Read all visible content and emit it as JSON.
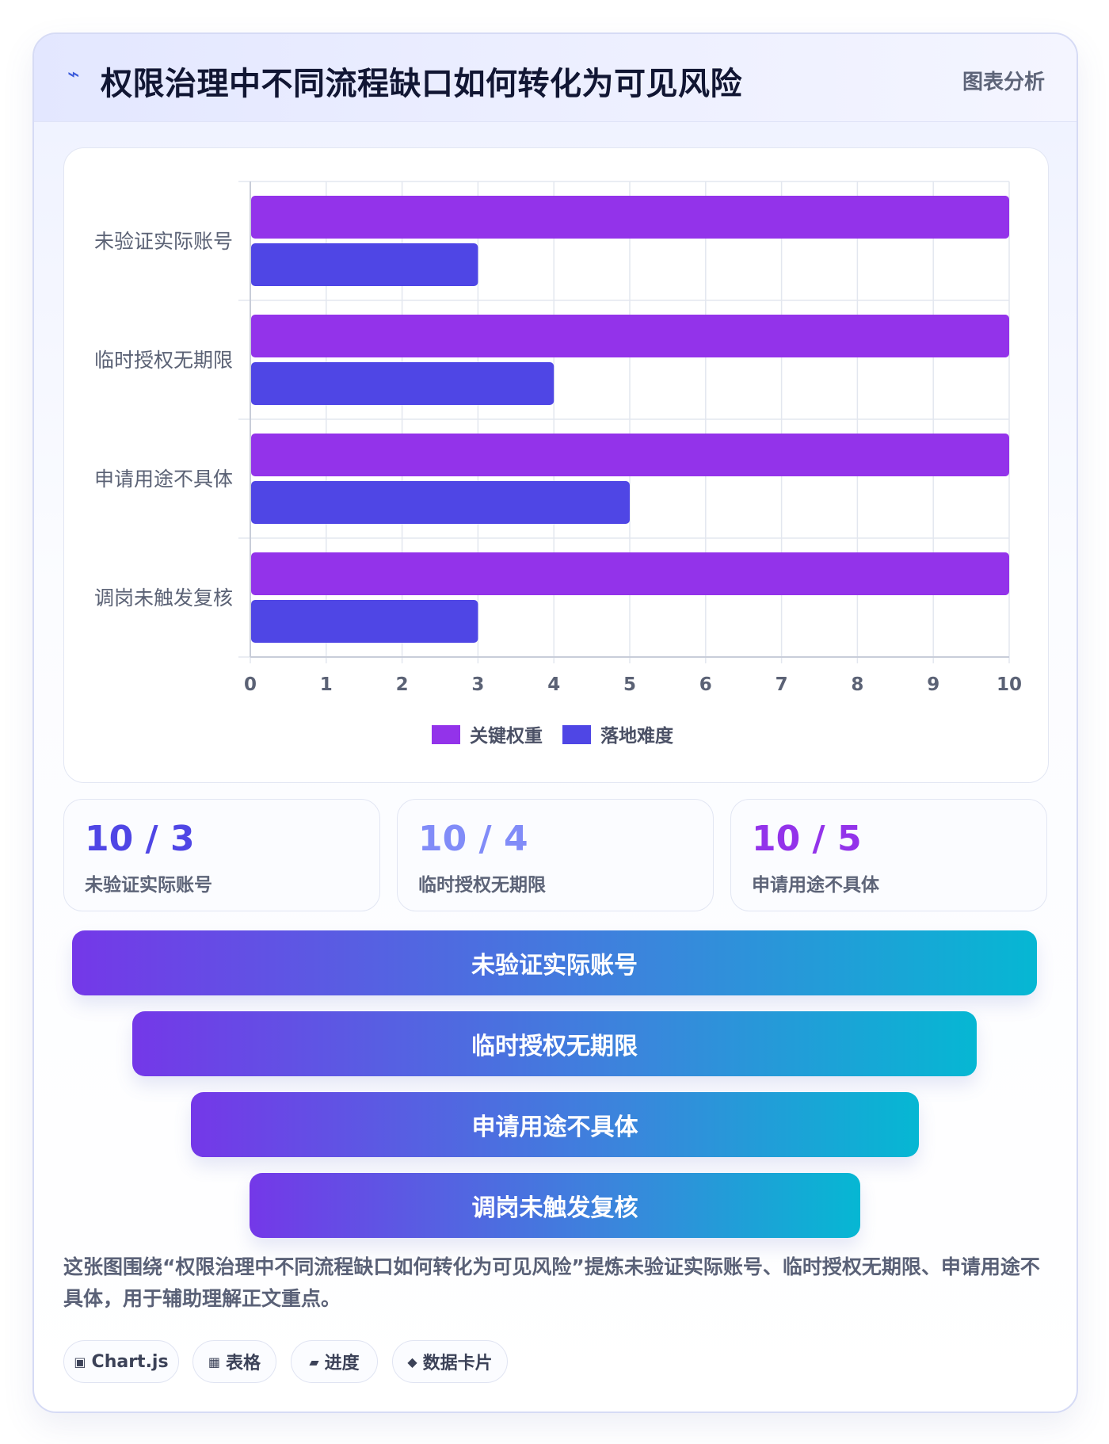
{
  "header": {
    "icon": "⌁",
    "title": "权限治理中不同流程缺口如何转化为可见风险",
    "tag": "图表分析"
  },
  "chart_data": {
    "type": "bar",
    "orientation": "horizontal",
    "categories": [
      "未验证实际账号",
      "临时授权无期限",
      "申请用途不具体",
      "调岗未触发复核"
    ],
    "series": [
      {
        "name": "关键权重",
        "values": [
          10,
          10,
          10,
          10
        ],
        "color": "#9333ea"
      },
      {
        "name": "落地难度",
        "values": [
          3,
          4,
          5,
          3
        ],
        "color": "#4f46e5"
      }
    ],
    "xlim": [
      0,
      10
    ],
    "xticks": [
      "0",
      "1",
      "2",
      "3",
      "4",
      "5",
      "6",
      "7",
      "8",
      "9",
      "10"
    ],
    "grid": true,
    "legend_position": "bottom"
  },
  "stats": [
    {
      "value": "10 / 3",
      "label": "未验证实际账号",
      "color": "#4f46e5"
    },
    {
      "value": "10 / 4",
      "label": "临时授权无期限",
      "color": "#818cf8"
    },
    {
      "value": "10 / 5",
      "label": "申请用途不具体",
      "color": "#9333ea"
    }
  ],
  "funnel": [
    {
      "label": "未验证实际账号"
    },
    {
      "label": "临时授权无期限"
    },
    {
      "label": "申请用途不具体"
    },
    {
      "label": "调岗未触发复核"
    }
  ],
  "summary": "这张图围绕“权限治理中不同流程缺口如何转化为可见风险”提炼未验证实际账号、临时授权无期限、申请用途不具体，用于辅助理解正文重点。",
  "chips": [
    {
      "icon": "▣",
      "label": "Chart.js"
    },
    {
      "icon": "▦",
      "label": "表格"
    },
    {
      "icon": "▰",
      "label": "进度"
    },
    {
      "icon": "◆",
      "label": "数据卡片"
    }
  ]
}
